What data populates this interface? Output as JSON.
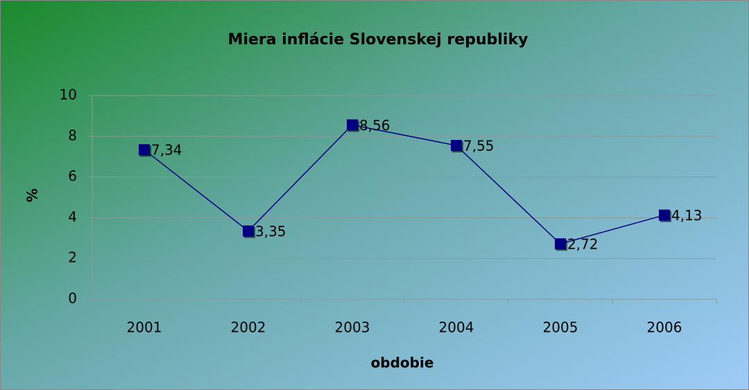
{
  "chart_data": {
    "type": "line",
    "title": "Miera inflácie Slovenskej republiky",
    "x_label": "obdobie",
    "y_label": "%",
    "categories": [
      "2001",
      "2002",
      "2003",
      "2004",
      "2005",
      "2006"
    ],
    "series": [
      {
        "name": "%",
        "color": "#000080",
        "values": [
          7.34,
          3.35,
          8.56,
          7.55,
          2.72,
          4.13
        ],
        "value_labels": [
          "7,34",
          "3,35",
          "8,56",
          "7,55",
          "2,72",
          "4,13"
        ]
      }
    ],
    "ylim": [
      0,
      10
    ],
    "yticks": [
      0,
      2,
      4,
      6,
      8,
      10
    ],
    "grid": true
  }
}
